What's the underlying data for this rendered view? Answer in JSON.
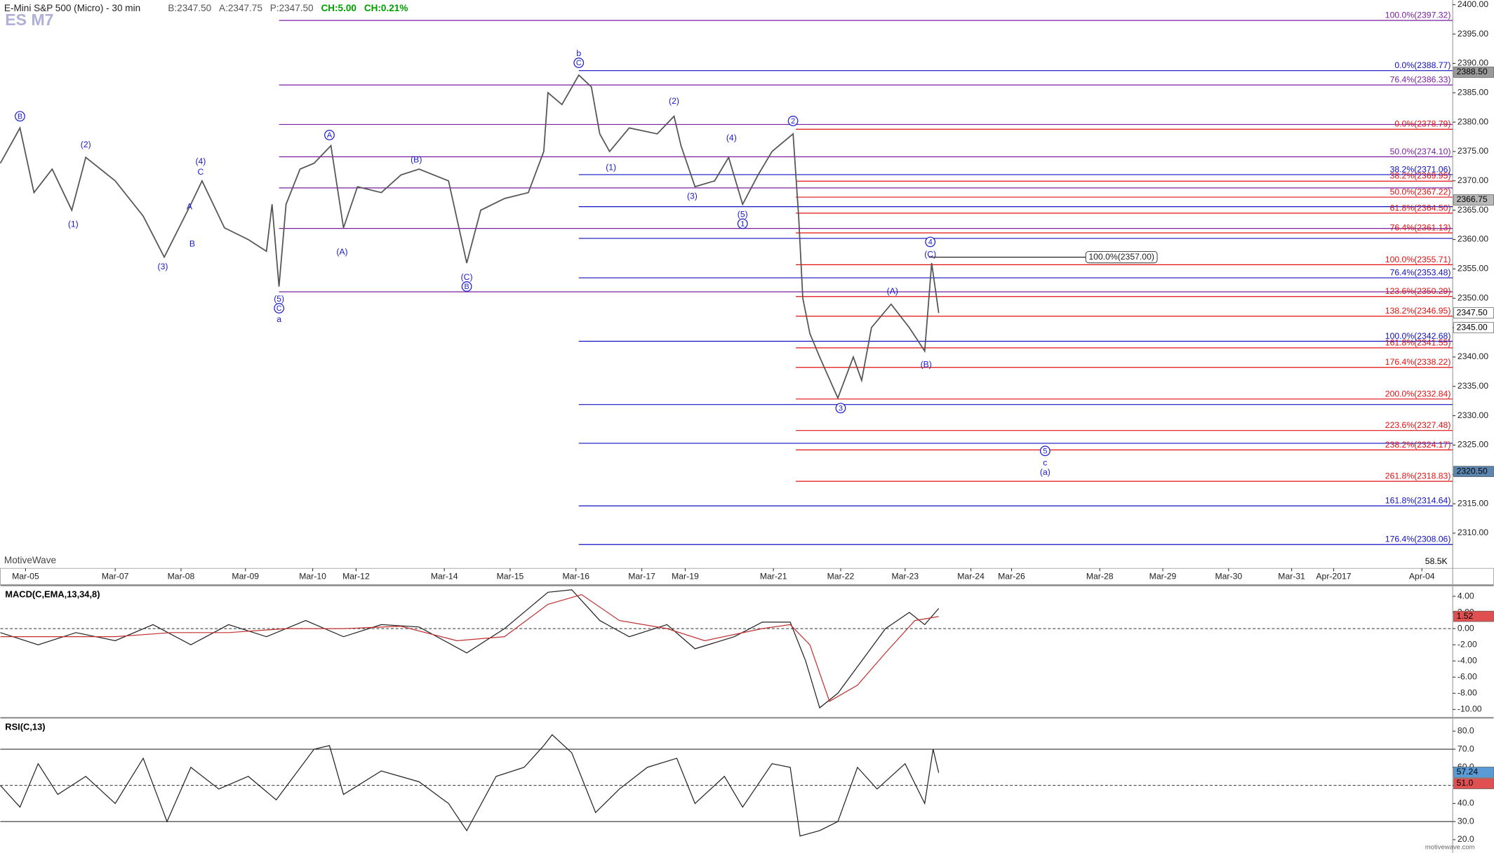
{
  "chart_data": [
    {
      "type": "line",
      "title": "E-Mini S&P 500 (Micro) - 30 min",
      "quote": [
        "B:2347.50",
        "A:2347.75",
        "P:2347.50",
        "CH:5.00",
        "CH:0.21%"
      ],
      "quote_colors": [
        "#555555",
        "#555555",
        "#555555",
        "#00a000",
        "#00a000"
      ],
      "symbol": "ES M7",
      "watermark": "MotiveWave",
      "site": "motivewave.com",
      "volume_tag": "58.5K",
      "xlim": [
        0,
        1037
      ],
      "xticks": [
        {
          "value": 18,
          "label": "Mar-05"
        },
        {
          "value": 82,
          "label": "Mar-07"
        },
        {
          "value": 129,
          "label": "Mar-08"
        },
        {
          "value": 175,
          "label": "Mar-09"
        },
        {
          "value": 223,
          "label": "Mar-10"
        },
        {
          "value": 254,
          "label": "Mar-12"
        },
        {
          "value": 317,
          "label": "Mar-14"
        },
        {
          "value": 364,
          "label": "Mar-15"
        },
        {
          "value": 411,
          "label": "Mar-16"
        },
        {
          "value": 458,
          "label": "Mar-17"
        },
        {
          "value": 489,
          "label": "Mar-19"
        },
        {
          "value": 552,
          "label": "Mar-21"
        },
        {
          "value": 600,
          "label": "Mar-22"
        },
        {
          "value": 646,
          "label": "Mar-23"
        },
        {
          "value": 693,
          "label": "Mar-24"
        },
        {
          "value": 722,
          "label": "Mar-26"
        },
        {
          "value": 785,
          "label": "Mar-28"
        },
        {
          "value": 830,
          "label": "Mar-29"
        },
        {
          "value": 877,
          "label": "Mar-30"
        },
        {
          "value": 922,
          "label": "Mar-31"
        },
        {
          "value": 952,
          "label": "Apr-2017"
        },
        {
          "value": 1015,
          "label": "Apr-04"
        }
      ],
      "ylim": [
        2304,
        2400.8
      ],
      "yticks": [
        {
          "value": 2310,
          "label": "2310.00"
        },
        {
          "value": 2315,
          "label": "2315.00"
        },
        {
          "value": 2320,
          "label": "2320.00"
        },
        {
          "value": 2325,
          "label": "2325.00"
        },
        {
          "value": 2330,
          "label": "2330.00"
        },
        {
          "value": 2335,
          "label": "2335.00"
        },
        {
          "value": 2340,
          "label": "2340.00"
        },
        {
          "value": 2345,
          "label": "2345.00"
        },
        {
          "value": 2350,
          "label": "2350.00"
        },
        {
          "value": 2355,
          "label": "2355.00"
        },
        {
          "value": 2360,
          "label": "2360.00"
        },
        {
          "value": 2365,
          "label": "2365.00"
        },
        {
          "value": 2370,
          "label": "2370.00"
        },
        {
          "value": 2375,
          "label": "2375.00"
        },
        {
          "value": 2380,
          "label": "2380.00"
        },
        {
          "value": 2385,
          "label": "2385.00"
        },
        {
          "value": 2390,
          "label": "2390.00"
        },
        {
          "value": 2395,
          "label": "2395.00"
        },
        {
          "value": 2400,
          "label": "2400.00"
        }
      ],
      "series": [
        {
          "name": "ES M7",
          "color": "#555555",
          "x": [
            0,
            14,
            24,
            37,
            51,
            61,
            82,
            102,
            117,
            136,
            144,
            160,
            177,
            190,
            194,
            199,
            204,
            214,
            224,
            236,
            245,
            255,
            272,
            286,
            299,
            320,
            333,
            343,
            360,
            377,
            388,
            391,
            401,
            413,
            422,
            428,
            435,
            449,
            469,
            481,
            486,
            496,
            510,
            520,
            530,
            541,
            551,
            566,
            570,
            573,
            578,
            585,
            598,
            609,
            615,
            622,
            636,
            649,
            660,
            665,
            670
          ],
          "values": [
            2373,
            2379,
            2368,
            2372,
            2365,
            2374,
            2370,
            2364,
            2357,
            2366,
            2370,
            2362,
            2360,
            2358,
            2366,
            2352,
            2366,
            2372,
            2373,
            2376,
            2362,
            2369,
            2368,
            2371,
            2372,
            2370,
            2356,
            2365,
            2367,
            2368,
            2375,
            2385,
            2383,
            2388,
            2386,
            2378,
            2375,
            2379,
            2378,
            2381,
            2376,
            2369,
            2370,
            2374,
            2366,
            2371,
            2375,
            2378,
            2364,
            2350,
            2344,
            2340,
            2333,
            2340,
            2336,
            2345,
            2349,
            2345,
            2341,
            2356,
            2347.5
          ]
        }
      ],
      "fib_levels": [
        {
          "label": "100.0%(2397.32)",
          "level": 2397.32,
          "color": "#7a1fa0",
          "x0": 199
        },
        {
          "label": "76.4%(2386.33)",
          "level": 2386.33,
          "color": "#7a1fa0",
          "x0": 199
        },
        {
          "level": 2379.6,
          "color": "#7a1fa0",
          "x0": 199
        },
        {
          "label": "50.0%(2374.10)",
          "level": 2374.1,
          "color": "#7a1fa0",
          "x0": 199
        },
        {
          "level": 2368.8,
          "color": "#7a1fa0",
          "x0": 199
        },
        {
          "level": 2361.9,
          "color": "#7a1fa0",
          "x0": 199
        },
        {
          "level": 2351.1,
          "color": "#7a1fa0",
          "x0": 199
        },
        {
          "label": "0.0%(2388.77)",
          "level": 2388.77,
          "color": "#1010c0",
          "x0": 413
        },
        {
          "label": "38.2%(2371.06)",
          "level": 2371.06,
          "color": "#1010c0",
          "x0": 413
        },
        {
          "level": 2365.6,
          "color": "#1010c0",
          "x0": 413
        },
        {
          "level": 2360.2,
          "color": "#1010c0",
          "x0": 413
        },
        {
          "label": "76.4%(2353.48)",
          "level": 2353.48,
          "color": "#1010c0",
          "x0": 413
        },
        {
          "label": "100.0%(2342.68)",
          "level": 2342.68,
          "color": "#1010c0",
          "x0": 413
        },
        {
          "level": 2331.9,
          "color": "#1010c0",
          "x0": 413
        },
        {
          "level": 2325.3,
          "color": "#1010c0",
          "x0": 413
        },
        {
          "label": "161.8%(2314.64)",
          "level": 2314.64,
          "color": "#1010c0",
          "x0": 413
        },
        {
          "label": "176.4%(2308.06)",
          "level": 2308.06,
          "color": "#1010c0",
          "x0": 413
        },
        {
          "label": "0.0%(2378.79)",
          "level": 2378.79,
          "color": "#e01010",
          "x0": 568
        },
        {
          "label": "38.2%(2369.95)",
          "level": 2369.95,
          "color": "#e01010",
          "x0": 568
        },
        {
          "label": "50.0%(2367.22)",
          "level": 2367.22,
          "color": "#e01010",
          "x0": 568
        },
        {
          "label": "61.8%(2364.50)",
          "level": 2364.5,
          "color": "#e01010",
          "x0": 568
        },
        {
          "label": "76.4%(2361.13)",
          "level": 2361.13,
          "color": "#e01010",
          "x0": 568
        },
        {
          "label": "100.0%(2355.71)",
          "level": 2355.71,
          "color": "#e01010",
          "x0": 568
        },
        {
          "label": "123.6%(2350.29)",
          "level": 2350.29,
          "color": "#e01010",
          "x0": 568
        },
        {
          "label": "138.2%(2346.95)",
          "level": 2346.95,
          "color": "#e01010",
          "x0": 568
        },
        {
          "label": "161.8%(2341.55)",
          "level": 2341.55,
          "color": "#e01010",
          "x0": 568
        },
        {
          "label": "176.4%(2338.22)",
          "level": 2338.22,
          "color": "#e01010",
          "x0": 568
        },
        {
          "label": "200.0%(2332.84)",
          "level": 2332.84,
          "color": "#e01010",
          "x0": 568
        },
        {
          "label": "223.6%(2327.48)",
          "level": 2327.48,
          "color": "#e01010",
          "x0": 568
        },
        {
          "label": "238.2%(2324.17)",
          "level": 2324.17,
          "color": "#e01010",
          "x0": 568
        },
        {
          "label": "261.8%(2318.83)",
          "level": 2318.83,
          "color": "#e01010",
          "x0": 568
        },
        {
          "label": "100.0%(2357.00)",
          "level": 2357.0,
          "color": "#222222",
          "x0": 663,
          "x1": 775,
          "boxed": true
        }
      ],
      "annotations": [
        {
          "text": "B",
          "x": 14,
          "price": 2381.0,
          "circled": true
        },
        {
          "text": "(1)",
          "x": 52,
          "price": 2362.6
        },
        {
          "text": "(2)",
          "x": 61,
          "price": 2376.2
        },
        {
          "text": "(3)",
          "x": 116,
          "price": 2355.4
        },
        {
          "text": "(4)",
          "x": 143,
          "price": 2373.3
        },
        {
          "text": "C",
          "x": 143,
          "price": 2371.5
        },
        {
          "text": "A",
          "x": 135,
          "price": 2365.6
        },
        {
          "text": "B",
          "x": 137,
          "price": 2359.3
        },
        {
          "text": "(5)",
          "x": 199,
          "price": 2349.9
        },
        {
          "text": "C",
          "x": 199,
          "price": 2348.3,
          "circled": true
        },
        {
          "text": "a",
          "x": 199,
          "price": 2346.4
        },
        {
          "text": "A",
          "x": 235,
          "price": 2377.8,
          "circled": true
        },
        {
          "text": "(A)",
          "x": 244,
          "price": 2357.9
        },
        {
          "text": "(B)",
          "x": 297,
          "price": 2373.6
        },
        {
          "text": "(C)",
          "x": 333,
          "price": 2353.6
        },
        {
          "text": "B",
          "x": 333,
          "price": 2352.0,
          "circled": true
        },
        {
          "text": "b",
          "x": 413,
          "price": 2391.7
        },
        {
          "text": "C",
          "x": 413,
          "price": 2390.1,
          "circled": true
        },
        {
          "text": "(2)",
          "x": 481,
          "price": 2383.6
        },
        {
          "text": "(1)",
          "x": 436,
          "price": 2372.3
        },
        {
          "text": "(3)",
          "x": 494,
          "price": 2367.4
        },
        {
          "text": "(4)",
          "x": 522,
          "price": 2377.3
        },
        {
          "text": "(5)",
          "x": 530,
          "price": 2364.3
        },
        {
          "text": "1",
          "x": 530,
          "price": 2362.7,
          "circled": true
        },
        {
          "text": "2",
          "x": 566,
          "price": 2380.2,
          "circled": true
        },
        {
          "text": "3",
          "x": 600,
          "price": 2331.3,
          "circled": true
        },
        {
          "text": "4",
          "x": 664,
          "price": 2359.6,
          "circled": true
        },
        {
          "text": "(C)",
          "x": 664,
          "price": 2357.5
        },
        {
          "text": "(A)",
          "x": 637,
          "price": 2351.2
        },
        {
          "text": "(B)",
          "x": 661,
          "price": 2338.7
        },
        {
          "text": "5",
          "x": 746,
          "price": 2324.0,
          "circled": true
        },
        {
          "text": "c",
          "x": 746,
          "price": 2322.0
        },
        {
          "text": "(a)",
          "x": 746,
          "price": 2320.4
        }
      ],
      "annotation_color": "#1a1acc",
      "price_tags": [
        {
          "label": "2388.50",
          "value": 2388.5,
          "bg": "#9a9a9a",
          "fg": "#000000"
        },
        {
          "label": "2366.75",
          "value": 2366.75,
          "bg": "#b8b8b8",
          "fg": "#000000"
        },
        {
          "label": "2347.50",
          "value": 2347.5,
          "bg": "#ffffff",
          "fg": "#000000"
        },
        {
          "label": "2345.00",
          "value": 2345,
          "bg": "#ffffff",
          "fg": "#000000"
        },
        {
          "label": "2320.50",
          "value": 2320.5,
          "bg": "#5b86b0",
          "fg": "#000000"
        }
      ]
    },
    {
      "type": "line",
      "title": "MACD(C,EMA,13,34,8)",
      "xlim": [
        0,
        1037
      ],
      "ylim": [
        -10.8,
        5.1
      ],
      "yticks": [
        {
          "value": 4,
          "label": "4.00"
        },
        {
          "value": 2,
          "label": "2.00"
        },
        {
          "value": 0,
          "label": "0.00"
        },
        {
          "value": -2,
          "label": "-2.00"
        },
        {
          "value": -4,
          "label": "-4.00"
        },
        {
          "value": -6,
          "label": "-6.00"
        },
        {
          "value": -8,
          "label": "-8.00"
        },
        {
          "value": -10,
          "label": "-10.00"
        }
      ],
      "reference_lines": [
        {
          "value": 0,
          "style": "dashed"
        }
      ],
      "series": [
        {
          "name": "MACD",
          "color": "#222222",
          "x": [
            0,
            27,
            54,
            82,
            109,
            136,
            163,
            190,
            218,
            245,
            272,
            299,
            333,
            360,
            391,
            408,
            428,
            449,
            476,
            496,
            524,
            544,
            564,
            575,
            585,
            598,
            615,
            632,
            649,
            660,
            670
          ],
          "values": [
            -0.5,
            -2,
            -0.5,
            -1.5,
            0.5,
            -2,
            0.5,
            -1,
            1,
            -1,
            0.5,
            0.2,
            -3,
            0,
            4.5,
            4.8,
            1,
            -1,
            0.5,
            -2.5,
            -1,
            0.8,
            0.8,
            -4,
            -9.8,
            -8,
            -4,
            0,
            2,
            0.5,
            2.5
          ]
        },
        {
          "name": "Signal",
          "color": "#c03030",
          "x": [
            0,
            41,
            82,
            122,
            163,
            204,
            245,
            286,
            326,
            360,
            391,
            415,
            442,
            476,
            503,
            544,
            564,
            578,
            592,
            612,
            632,
            653,
            670
          ],
          "values": [
            -1,
            -1,
            -1,
            -0.5,
            -0.5,
            0,
            0,
            0.3,
            -1.5,
            -1,
            3,
            4.2,
            1,
            0,
            -1.5,
            0,
            0.5,
            -2,
            -9,
            -7,
            -3,
            1,
            1.5
          ]
        }
      ],
      "price_tags": [
        {
          "label": "1.52",
          "value": 1.52,
          "bg": "#e05050",
          "fg": "#000000"
        }
      ]
    },
    {
      "type": "line",
      "title": "RSI(C,13)",
      "xlim": [
        0,
        1037
      ],
      "ylim": [
        14.2,
        86.3
      ],
      "yticks": [
        {
          "value": 20,
          "label": "20.0"
        },
        {
          "value": 30,
          "label": "30.0"
        },
        {
          "value": 40,
          "label": "40.0"
        },
        {
          "value": 50,
          "label": "50.0"
        },
        {
          "value": 60,
          "label": "60.0"
        },
        {
          "value": 70,
          "label": "70.0"
        },
        {
          "value": 80,
          "label": "80.0"
        }
      ],
      "reference_lines": [
        {
          "value": 70,
          "style": "solid"
        },
        {
          "value": 50,
          "style": "dashed"
        },
        {
          "value": 30,
          "style": "solid"
        }
      ],
      "series": [
        {
          "name": "RSI",
          "color": "#222222",
          "x": [
            0,
            14,
            27,
            41,
            61,
            82,
            102,
            119,
            136,
            156,
            177,
            197,
            224,
            235,
            245,
            272,
            299,
            320,
            333,
            354,
            374,
            388,
            394,
            408,
            425,
            442,
            462,
            483,
            496,
            517,
            530,
            551,
            564,
            571,
            585,
            598,
            612,
            626,
            646,
            660,
            666,
            670
          ],
          "values": [
            50,
            38,
            62,
            45,
            55,
            40,
            65,
            30,
            60,
            48,
            55,
            42,
            70,
            72,
            45,
            58,
            52,
            40,
            25,
            55,
            60,
            72,
            78,
            68,
            35,
            48,
            60,
            65,
            40,
            55,
            38,
            62,
            60,
            22,
            25,
            30,
            60,
            48,
            62,
            40,
            70,
            57
          ]
        }
      ],
      "price_tags": [
        {
          "label": "57.24",
          "value": 57.24,
          "bg": "#5b9bd5",
          "fg": "#000000"
        },
        {
          "label": "51.0",
          "value": 51.0,
          "bg": "#e05050",
          "fg": "#000000"
        }
      ]
    }
  ]
}
